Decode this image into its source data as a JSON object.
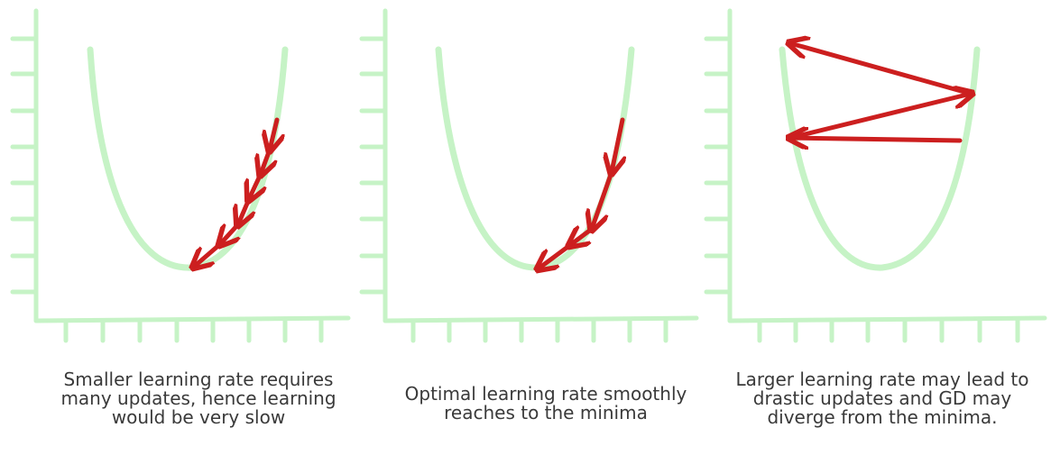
{
  "colors": {
    "curve": "#c6f3c6",
    "axis": "#c6f3c6",
    "arrow": "#cc1f1f",
    "caption": "#3a3a3a",
    "background": "#ffffff"
  },
  "panels": [
    {
      "id": "small",
      "caption_lines": [
        "Smaller learning rate requires",
        "many updates, hence learning",
        "would be very slow"
      ]
    },
    {
      "id": "optimal",
      "caption_lines": [
        "Optimal learning rate smoothly",
        "reaches to the minima"
      ]
    },
    {
      "id": "large",
      "caption_lines": [
        "Larger learning rate may lead to",
        "drastic updates and GD may",
        "diverge from the minima."
      ]
    }
  ]
}
